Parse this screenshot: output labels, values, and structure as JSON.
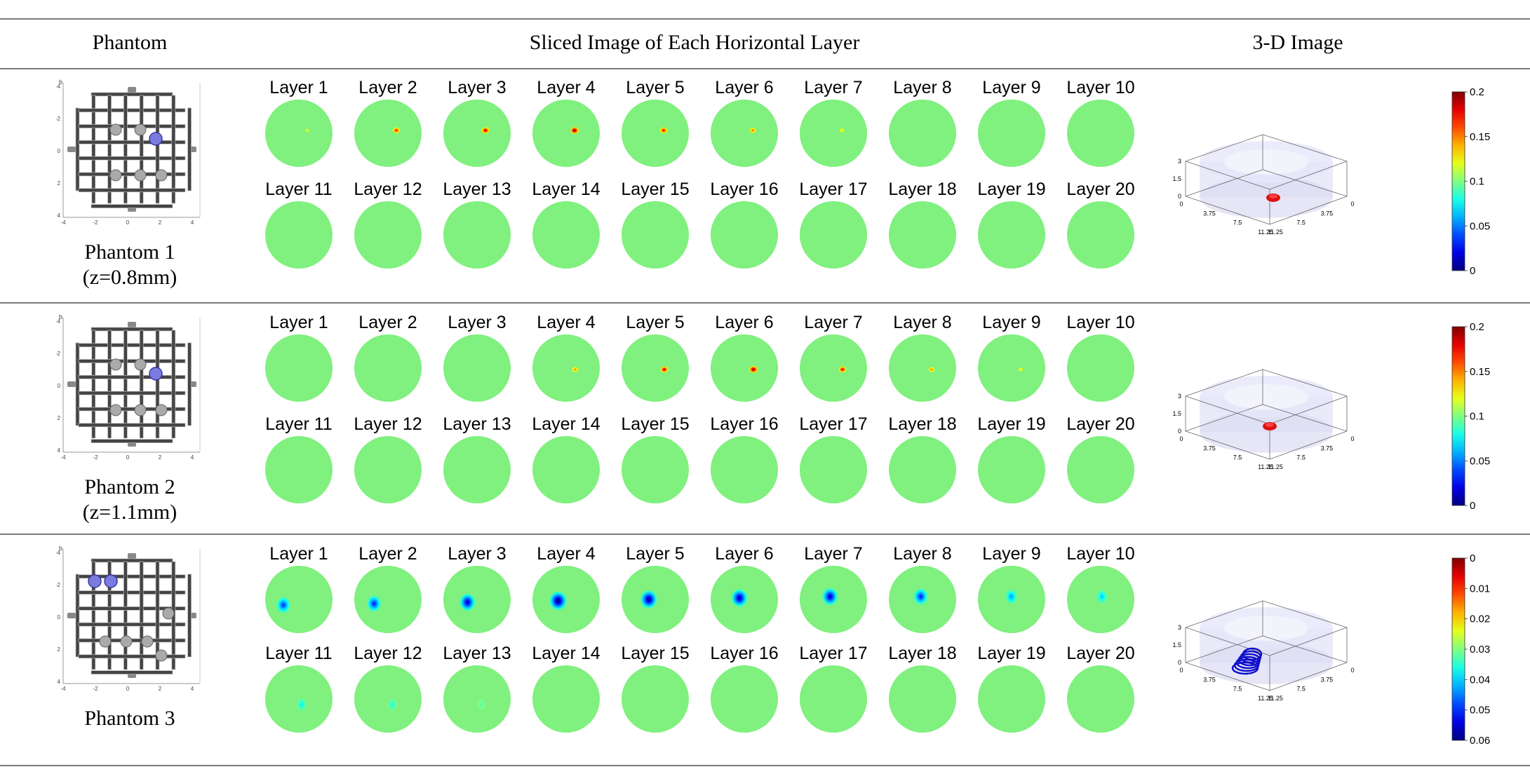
{
  "headers": {
    "phantom": "Phantom",
    "sliced": "Sliced Image of Each Horizontal Layer",
    "three_d": "3-D Image"
  },
  "phantom_axis_ticks": [
    "-4",
    "-2",
    "0",
    "2",
    "4"
  ],
  "phantom_axis_corner": "b",
  "rows": [
    {
      "phantom_name": "Phantom 1",
      "phantom_depth": "(z=0.8mm)",
      "colorbar_ticks": [
        "0.2",
        "0.15",
        "0.1",
        "0.05",
        "0"
      ],
      "axis_z_ticks": [
        "3",
        "1.5",
        "0"
      ],
      "axis_x_ticks": [
        "0",
        "3.75",
        "7.5",
        "11.25"
      ],
      "axis_y_ticks": [
        "0",
        "3.75",
        "7.5",
        "11.25"
      ],
      "top_layers": [
        "Layer 1",
        "Layer 2",
        "Layer 3",
        "Layer 4",
        "Layer 5",
        "Layer 6",
        "Layer 7",
        "Layer 8",
        "Layer 9",
        "Layer 10"
      ],
      "bottom_layers": [
        "Layer 11",
        "Layer 12",
        "Layer 13",
        "Layer 14",
        "Layer 15",
        "Layer 16",
        "Layer 17",
        "Layer 18",
        "Layer 19",
        "Layer 20"
      ],
      "spot_intensity": [
        0.08,
        0.7,
        0.85,
        1.0,
        0.75,
        0.5,
        0.2,
        0,
        0,
        0,
        0,
        0,
        0,
        0,
        0,
        0,
        0,
        0,
        0,
        0
      ],
      "spot_kind": "hot"
    },
    {
      "phantom_name": "Phantom 2",
      "phantom_depth": "(z=1.1mm)",
      "colorbar_ticks": [
        "0.2",
        "0.15",
        "0.1",
        "0.05",
        "0"
      ],
      "axis_z_ticks": [
        "3",
        "1.5",
        "0"
      ],
      "axis_x_ticks": [
        "0",
        "3.75",
        "7.5",
        "11.25"
      ],
      "axis_y_ticks": [
        "0",
        "3.75",
        "7.5",
        "11.25"
      ],
      "top_layers": [
        "Layer 1",
        "Layer 2",
        "Layer 3",
        "Layer 4",
        "Layer 5",
        "Layer 6",
        "Layer 7",
        "Layer 8",
        "Layer 9",
        "Layer 10"
      ],
      "bottom_layers": [
        "Layer 11",
        "Layer 12",
        "Layer 13",
        "Layer 14",
        "Layer 15",
        "Layer 16",
        "Layer 17",
        "Layer 18",
        "Layer 19",
        "Layer 20"
      ],
      "spot_intensity": [
        0,
        0,
        0,
        0.45,
        0.85,
        1.0,
        0.8,
        0.45,
        0.15,
        0,
        0,
        0,
        0,
        0,
        0,
        0,
        0,
        0,
        0,
        0
      ],
      "spot_kind": "hot"
    },
    {
      "phantom_name": "Phantom 3",
      "phantom_depth": "",
      "colorbar_ticks": [
        "0",
        "0.01",
        "0.02",
        "0.03",
        "0.04",
        "0.05",
        "0.06"
      ],
      "axis_z_ticks": [
        "3",
        "1.5",
        "0"
      ],
      "axis_x_ticks": [
        "0",
        "3.75",
        "7.5",
        "11.25"
      ],
      "axis_y_ticks": [
        "0",
        "3.75",
        "7.5",
        "11.25"
      ],
      "top_layers": [
        "Layer 1",
        "Layer 2",
        "Layer 3",
        "Layer 4",
        "Layer 5",
        "Layer 6",
        "Layer 7",
        "Layer 8",
        "Layer 9",
        "Layer 10"
      ],
      "bottom_layers": [
        "Layer 11",
        "Layer 12",
        "Layer 13",
        "Layer 14",
        "Layer 15",
        "Layer 16",
        "Layer 17",
        "Layer 18",
        "Layer 19",
        "Layer 20"
      ],
      "spot_intensity": [
        0.65,
        0.7,
        0.85,
        1.0,
        0.95,
        0.9,
        0.85,
        0.7,
        0.45,
        0.35,
        0.25,
        0.18,
        0.06,
        0,
        0,
        0,
        0,
        0,
        0,
        0
      ],
      "spot_kind": "cold"
    }
  ],
  "colors": {
    "disk_fill": "#80f07f",
    "rule": "#7a7a7a"
  }
}
